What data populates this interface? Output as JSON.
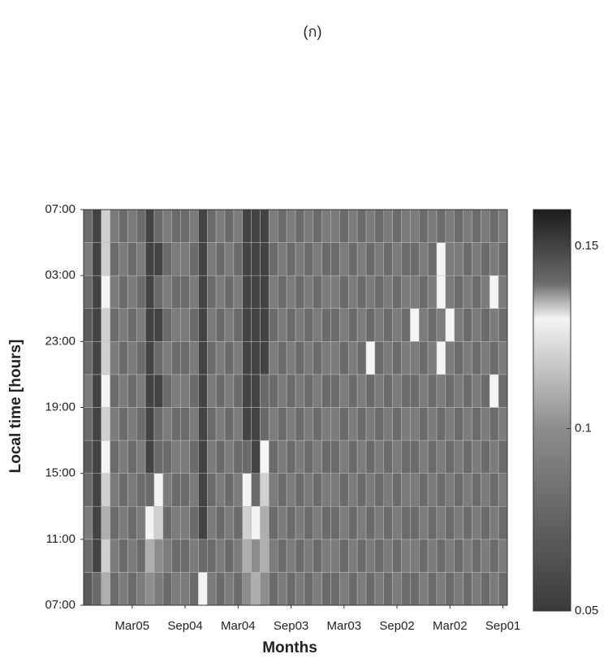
{
  "chart_data": {
    "type": "heatmap",
    "title": "(ก)",
    "x_label": "Months",
    "y_label": "Local time [hours]",
    "categories": [
      null,
      null,
      null,
      null,
      null,
      "Mar05",
      null,
      null,
      null,
      null,
      null,
      "Sep04",
      null,
      null,
      null,
      null,
      null,
      "Mar04",
      null,
      null,
      null,
      null,
      null,
      "Sep03",
      null,
      null,
      null,
      null,
      null,
      "Mar03",
      null,
      null,
      null,
      null,
      null,
      "Sep02",
      null,
      null,
      null,
      null,
      null,
      "Mar02",
      null,
      null,
      null,
      null,
      null,
      "Sep01"
    ],
    "y": [
      0,
      2,
      4,
      6,
      8,
      10,
      12,
      14,
      16,
      18,
      20,
      22
    ],
    "ylim": [
      0,
      24
    ],
    "yticks": [
      {
        "value": 0,
        "label": "07:00"
      },
      {
        "value": 4,
        "label": "11:00"
      },
      {
        "value": 8,
        "label": "15:00"
      },
      {
        "value": 12,
        "label": "19:00"
      },
      {
        "value": 16,
        "label": "23:00"
      },
      {
        "value": 20,
        "label": "03:00"
      },
      {
        "value": 24,
        "label": "07:00"
      }
    ],
    "zlim": [
      0.05,
      0.16
    ],
    "zticks": [
      0.05,
      {
        "value": 0.1,
        "label": "0.1"
      },
      0.15
    ],
    "colormap": [
      [
        0.05,
        "#3a3a3a"
      ],
      [
        0.1,
        "#8c8c8c"
      ],
      [
        0.12,
        "#d0d0d0"
      ],
      [
        0.13,
        "#f4f4f4"
      ],
      [
        0.14,
        "#6a6a6a"
      ],
      [
        0.16,
        "#1c1c1c"
      ]
    ],
    "z": [
      [
        0.07,
        0.14,
        0.11,
        0.08,
        0.09,
        0.08,
        0.09,
        0.1,
        0.09,
        0.08,
        0.09,
        0.09,
        0.08,
        0.13,
        0.09,
        0.08,
        0.09,
        0.08,
        0.1,
        0.11,
        0.1,
        0.08,
        0.09,
        0.08,
        0.09,
        0.08,
        0.09,
        0.08,
        0.08,
        0.09,
        0.08,
        0.09,
        0.08,
        0.09,
        0.08,
        0.09,
        0.08,
        0.08,
        0.09,
        0.08,
        0.09,
        0.08,
        0.09,
        0.08,
        0.09,
        0.08,
        0.09,
        0.08
      ],
      [
        0.08,
        0.15,
        0.12,
        0.09,
        0.08,
        0.09,
        0.08,
        0.11,
        0.1,
        0.09,
        0.08,
        0.08,
        0.09,
        0.14,
        0.08,
        0.09,
        0.08,
        0.09,
        0.11,
        0.1,
        0.11,
        0.09,
        0.08,
        0.09,
        0.08,
        0.09,
        0.08,
        0.09,
        0.09,
        0.08,
        0.09,
        0.08,
        0.09,
        0.08,
        0.09,
        0.08,
        0.09,
        0.09,
        0.08,
        0.09,
        0.08,
        0.09,
        0.08,
        0.09,
        0.08,
        0.09,
        0.08,
        0.09
      ],
      [
        0.09,
        0.15,
        0.11,
        0.08,
        0.09,
        0.08,
        0.09,
        0.13,
        0.12,
        0.08,
        0.09,
        0.09,
        0.08,
        0.15,
        0.09,
        0.08,
        0.09,
        0.08,
        0.12,
        0.13,
        0.11,
        0.08,
        0.09,
        0.08,
        0.09,
        0.08,
        0.09,
        0.08,
        0.08,
        0.09,
        0.08,
        0.09,
        0.08,
        0.09,
        0.08,
        0.09,
        0.08,
        0.08,
        0.09,
        0.08,
        0.09,
        0.08,
        0.09,
        0.08,
        0.09,
        0.08,
        0.09,
        0.08
      ],
      [
        0.08,
        0.15,
        0.12,
        0.09,
        0.08,
        0.09,
        0.08,
        0.14,
        0.13,
        0.09,
        0.08,
        0.08,
        0.09,
        0.15,
        0.08,
        0.09,
        0.08,
        0.09,
        0.13,
        0.14,
        0.12,
        0.09,
        0.08,
        0.09,
        0.08,
        0.09,
        0.08,
        0.09,
        0.09,
        0.08,
        0.09,
        0.08,
        0.09,
        0.08,
        0.09,
        0.08,
        0.09,
        0.09,
        0.08,
        0.09,
        0.08,
        0.09,
        0.08,
        0.09,
        0.08,
        0.09,
        0.08,
        0.09
      ],
      [
        0.07,
        0.15,
        0.13,
        0.08,
        0.09,
        0.08,
        0.09,
        0.15,
        0.14,
        0.08,
        0.09,
        0.09,
        0.08,
        0.15,
        0.09,
        0.08,
        0.09,
        0.08,
        0.14,
        0.15,
        0.13,
        0.08,
        0.09,
        0.08,
        0.09,
        0.08,
        0.09,
        0.08,
        0.08,
        0.09,
        0.08,
        0.09,
        0.08,
        0.09,
        0.08,
        0.09,
        0.08,
        0.08,
        0.09,
        0.08,
        0.09,
        0.08,
        0.09,
        0.08,
        0.09,
        0.08,
        0.09,
        0.08
      ],
      [
        0.08,
        0.15,
        0.12,
        0.09,
        0.08,
        0.09,
        0.08,
        0.15,
        0.14,
        0.09,
        0.08,
        0.08,
        0.09,
        0.15,
        0.08,
        0.09,
        0.08,
        0.09,
        0.15,
        0.15,
        0.14,
        0.09,
        0.08,
        0.09,
        0.08,
        0.09,
        0.08,
        0.09,
        0.09,
        0.08,
        0.09,
        0.08,
        0.09,
        0.08,
        0.09,
        0.08,
        0.09,
        0.09,
        0.08,
        0.09,
        0.08,
        0.09,
        0.08,
        0.09,
        0.08,
        0.09,
        0.08,
        0.09
      ],
      [
        0.09,
        0.15,
        0.13,
        0.08,
        0.09,
        0.08,
        0.09,
        0.15,
        0.15,
        0.08,
        0.09,
        0.09,
        0.08,
        0.15,
        0.09,
        0.08,
        0.09,
        0.08,
        0.15,
        0.15,
        0.14,
        0.08,
        0.09,
        0.08,
        0.09,
        0.08,
        0.09,
        0.08,
        0.08,
        0.09,
        0.08,
        0.09,
        0.08,
        0.09,
        0.08,
        0.09,
        0.08,
        0.08,
        0.09,
        0.08,
        0.09,
        0.08,
        0.09,
        0.08,
        0.09,
        0.08,
        0.13,
        0.08
      ],
      [
        0.08,
        0.15,
        0.12,
        0.09,
        0.08,
        0.09,
        0.08,
        0.15,
        0.14,
        0.09,
        0.08,
        0.08,
        0.09,
        0.15,
        0.08,
        0.09,
        0.08,
        0.09,
        0.15,
        0.15,
        0.15,
        0.09,
        0.08,
        0.09,
        0.08,
        0.09,
        0.08,
        0.09,
        0.09,
        0.08,
        0.09,
        0.08,
        0.13,
        0.08,
        0.09,
        0.08,
        0.09,
        0.09,
        0.08,
        0.09,
        0.13,
        0.09,
        0.08,
        0.09,
        0.08,
        0.09,
        0.08,
        0.09
      ],
      [
        0.07,
        0.15,
        0.12,
        0.08,
        0.09,
        0.08,
        0.09,
        0.15,
        0.15,
        0.08,
        0.09,
        0.09,
        0.08,
        0.15,
        0.09,
        0.08,
        0.09,
        0.08,
        0.15,
        0.15,
        0.15,
        0.08,
        0.09,
        0.08,
        0.09,
        0.08,
        0.09,
        0.08,
        0.08,
        0.09,
        0.08,
        0.09,
        0.08,
        0.09,
        0.08,
        0.09,
        0.08,
        0.13,
        0.09,
        0.08,
        0.09,
        0.13,
        0.09,
        0.08,
        0.09,
        0.08,
        0.09,
        0.08
      ],
      [
        0.08,
        0.15,
        0.13,
        0.09,
        0.08,
        0.09,
        0.08,
        0.15,
        0.14,
        0.09,
        0.08,
        0.08,
        0.09,
        0.15,
        0.08,
        0.09,
        0.08,
        0.09,
        0.15,
        0.15,
        0.15,
        0.09,
        0.08,
        0.09,
        0.08,
        0.09,
        0.08,
        0.09,
        0.09,
        0.08,
        0.09,
        0.08,
        0.09,
        0.08,
        0.09,
        0.08,
        0.09,
        0.09,
        0.08,
        0.09,
        0.13,
        0.09,
        0.08,
        0.09,
        0.08,
        0.09,
        0.13,
        0.09
      ],
      [
        0.09,
        0.15,
        0.12,
        0.08,
        0.09,
        0.08,
        0.09,
        0.15,
        0.15,
        0.08,
        0.09,
        0.09,
        0.08,
        0.15,
        0.09,
        0.08,
        0.09,
        0.08,
        0.15,
        0.15,
        0.15,
        0.08,
        0.09,
        0.08,
        0.09,
        0.08,
        0.09,
        0.08,
        0.08,
        0.09,
        0.08,
        0.09,
        0.08,
        0.09,
        0.08,
        0.09,
        0.08,
        0.08,
        0.09,
        0.08,
        0.13,
        0.09,
        0.09,
        0.08,
        0.09,
        0.08,
        0.09,
        0.08
      ],
      [
        0.08,
        0.15,
        0.12,
        0.09,
        0.08,
        0.09,
        0.08,
        0.15,
        0.14,
        0.09,
        0.08,
        0.08,
        0.09,
        0.15,
        0.08,
        0.09,
        0.08,
        0.09,
        0.15,
        0.15,
        0.15,
        0.09,
        0.08,
        0.09,
        0.08,
        0.09,
        0.08,
        0.09,
        0.09,
        0.08,
        0.09,
        0.08,
        0.09,
        0.08,
        0.09,
        0.08,
        0.09,
        0.09,
        0.08,
        0.09,
        0.08,
        0.09,
        0.08,
        0.09,
        0.08,
        0.09,
        0.08,
        0.09
      ]
    ]
  }
}
